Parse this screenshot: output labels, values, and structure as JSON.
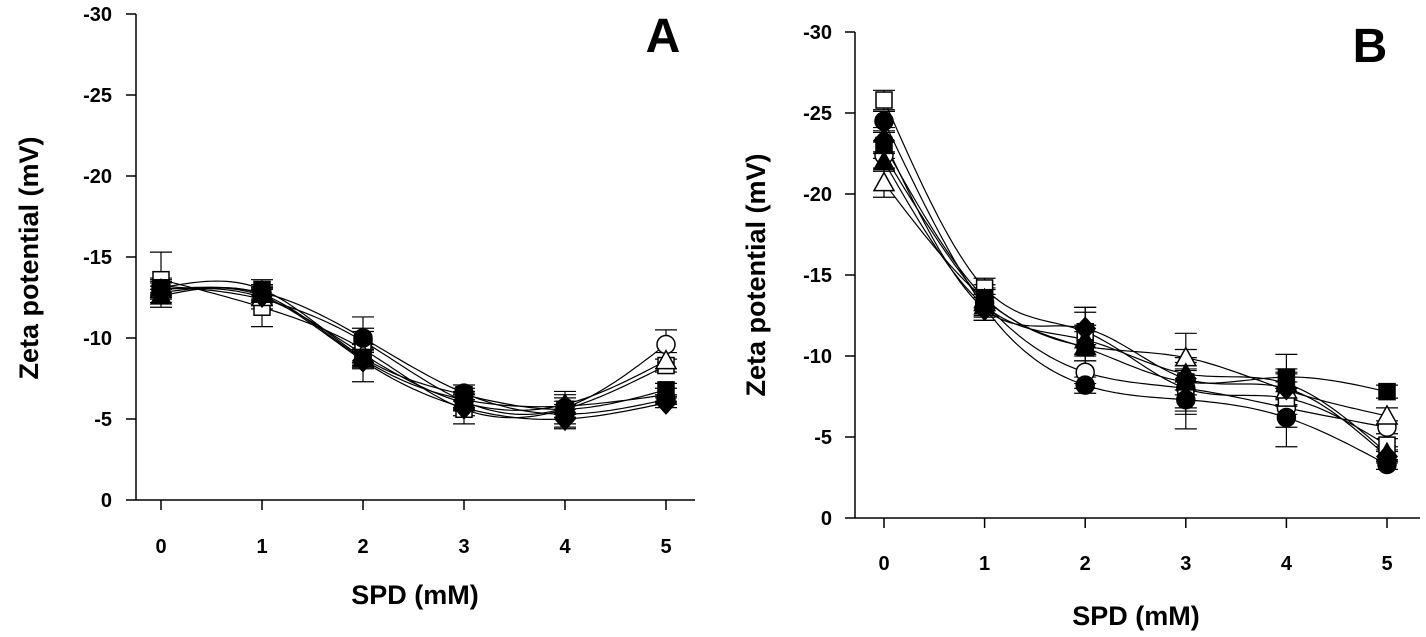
{
  "chart_data": [
    {
      "type": "line",
      "panel_label": "A",
      "xlabel": "SPD (mM)",
      "ylabel": "Zeta potential (mV)",
      "x": [
        0,
        1,
        2,
        3,
        4,
        5
      ],
      "xticks": [
        "0",
        "1",
        "2",
        "3",
        "4",
        "5"
      ],
      "yticks": [
        "0",
        "-5",
        "-10",
        "-15",
        "-20",
        "-25",
        "-30"
      ],
      "ylim": [
        0,
        -30
      ],
      "xlim": [
        -0.3,
        5.3
      ],
      "grid": false,
      "series": [
        {
          "name": "filled circle",
          "values": [
            -13.0,
            -12.8,
            -10.0,
            -6.6,
            -5.3,
            -6.2
          ],
          "err": [
            0.4,
            0.5,
            0.6,
            0.5,
            0.6,
            0.3
          ]
        },
        {
          "name": "open circle",
          "values": [
            -13.2,
            -12.4,
            -9.8,
            -6.1,
            -5.7,
            -9.6
          ],
          "err": [
            0.5,
            0.6,
            0.6,
            0.5,
            0.6,
            0.9
          ]
        },
        {
          "name": "filled square",
          "values": [
            -13.1,
            -13.0,
            -8.8,
            -6.5,
            -5.6,
            -6.8
          ],
          "err": [
            0.5,
            0.6,
            0.5,
            0.4,
            0.5,
            0.4
          ]
        },
        {
          "name": "open square",
          "values": [
            -13.6,
            -11.9,
            -9.3,
            -5.6,
            -5.6,
            -8.3
          ],
          "err": [
            1.7,
            1.2,
            2.0,
            0.9,
            1.1,
            0.4
          ]
        },
        {
          "name": "filled triangle",
          "values": [
            -12.6,
            -12.7,
            -8.7,
            -6.2,
            -5.8,
            -6.5
          ],
          "err": [
            0.4,
            0.5,
            0.5,
            0.5,
            0.5,
            0.4
          ]
        },
        {
          "name": "open triangle",
          "values": [
            -13.0,
            -12.5,
            -9.0,
            -6.0,
            -5.9,
            -8.6
          ],
          "err": [
            0.5,
            0.5,
            0.6,
            0.5,
            0.6,
            0.5
          ]
        },
        {
          "name": "filled diamond",
          "values": [
            -12.8,
            -12.6,
            -8.6,
            -5.7,
            -5.0,
            -6.0
          ],
          "err": [
            0.4,
            0.5,
            0.5,
            0.5,
            0.6,
            0.3
          ]
        }
      ]
    },
    {
      "type": "line",
      "panel_label": "B",
      "xlabel": "SPD (mM)",
      "ylabel": "Zeta potential (mV)",
      "x": [
        0,
        1,
        2,
        3,
        4,
        5
      ],
      "xticks": [
        "0",
        "1",
        "2",
        "3",
        "4",
        "5"
      ],
      "yticks": [
        "0",
        "-5",
        "-10",
        "-15",
        "-20",
        "-25",
        "-30"
      ],
      "ylim": [
        0,
        -30
      ],
      "xlim": [
        -0.3,
        5.3
      ],
      "grid": false,
      "series": [
        {
          "name": "filled circle",
          "values": [
            -24.5,
            -13.0,
            -8.2,
            -7.3,
            -6.2,
            -3.3
          ],
          "err": [
            0.6,
            0.8,
            0.5,
            1.8,
            1.8,
            0.3
          ]
        },
        {
          "name": "open circle",
          "values": [
            -22.4,
            -13.3,
            -9.0,
            -8.0,
            -6.8,
            -5.6
          ],
          "err": [
            0.8,
            0.8,
            0.7,
            1.4,
            1.2,
            0.4
          ]
        },
        {
          "name": "filled square",
          "values": [
            -23.0,
            -13.6,
            -10.5,
            -8.4,
            -8.7,
            -7.8
          ],
          "err": [
            0.8,
            0.8,
            2.5,
            2.0,
            1.4,
            0.4
          ]
        },
        {
          "name": "open square",
          "values": [
            -25.8,
            -14.2,
            -11.5,
            -8.0,
            -7.4,
            -4.5
          ],
          "err": [
            0.6,
            0.6,
            1.5,
            1.2,
            1.0,
            0.4
          ]
        },
        {
          "name": "filled triangle",
          "values": [
            -22.0,
            -13.1,
            -11.0,
            -8.9,
            -8.3,
            -4.0
          ],
          "err": [
            0.6,
            0.7,
            0.9,
            1.0,
            0.9,
            0.4
          ]
        },
        {
          "name": "open triangle",
          "values": [
            -20.7,
            -13.5,
            -10.6,
            -9.9,
            -7.9,
            -6.3
          ],
          "err": [
            0.9,
            0.7,
            0.9,
            1.5,
            1.0,
            0.5
          ]
        },
        {
          "name": "filled diamond",
          "values": [
            -23.3,
            -12.9,
            -11.7,
            -8.6,
            -8.0,
            -3.8
          ],
          "err": [
            0.8,
            0.7,
            1.0,
            1.0,
            1.0,
            0.4
          ]
        }
      ]
    }
  ]
}
